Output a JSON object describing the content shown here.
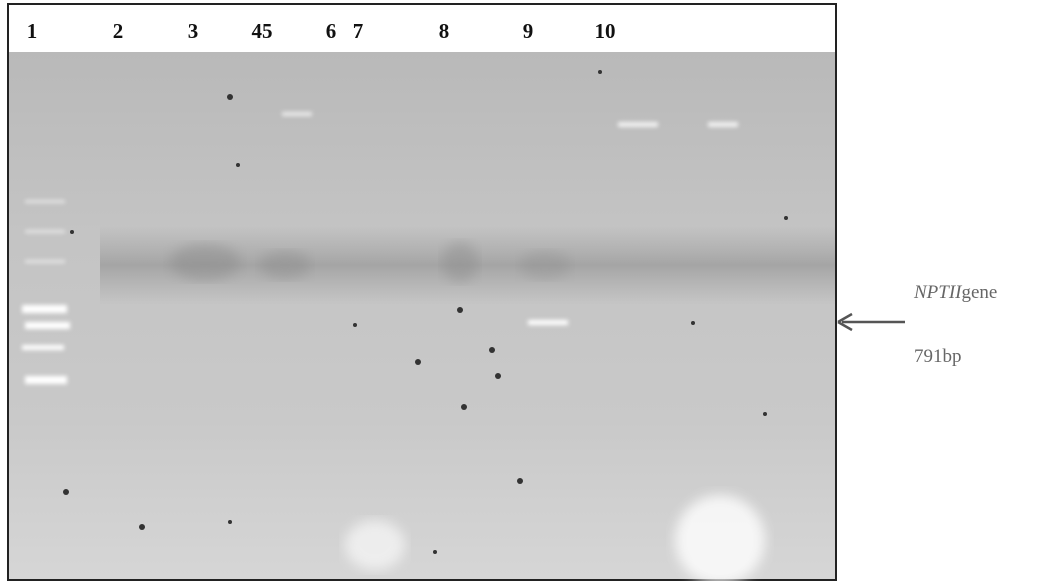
{
  "lanes": [
    "1",
    "2",
    "3",
    "45",
    "6",
    "7",
    "8",
    "9",
    "10"
  ],
  "annotation": {
    "gene_name": "NPTII",
    "gene_suffix": "gene",
    "size": "791bp"
  }
}
